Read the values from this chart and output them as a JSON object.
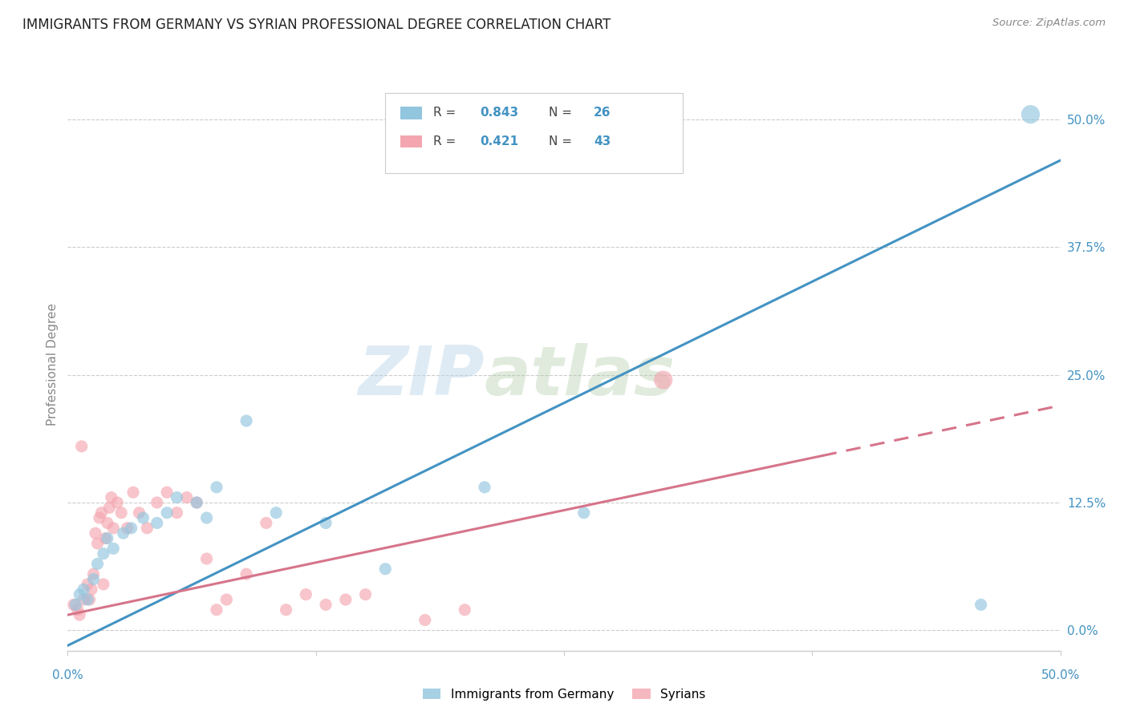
{
  "title": "IMMIGRANTS FROM GERMANY VS SYRIAN PROFESSIONAL DEGREE CORRELATION CHART",
  "source": "Source: ZipAtlas.com",
  "ylabel": "Professional Degree",
  "ytick_labels": [
    "0.0%",
    "12.5%",
    "25.0%",
    "37.5%",
    "50.0%"
  ],
  "ytick_values": [
    0.0,
    12.5,
    25.0,
    37.5,
    50.0
  ],
  "xlim": [
    0.0,
    50.0
  ],
  "ylim": [
    -2.0,
    54.0
  ],
  "blue_color": "#92c5de",
  "pink_color": "#f4a6b0",
  "blue_line_color": "#4393c3",
  "pink_line_color": "#d6748a",
  "legend_blue_r": "0.843",
  "legend_blue_n": "26",
  "legend_pink_r": "0.421",
  "legend_pink_n": "43",
  "legend_text_color": "#4393c3",
  "label_color": "#4393c3",
  "watermark_zip": "ZIP",
  "watermark_atlas": "atlas",
  "blue_line_x0": 0.0,
  "blue_line_y0": -1.5,
  "blue_line_x1": 50.0,
  "blue_line_y1": 46.0,
  "pink_line_x0": 0.0,
  "pink_line_y0": 1.5,
  "pink_line_x1": 50.0,
  "pink_line_y1": 22.0,
  "pink_dash_start_x": 38.0,
  "blue_scatter_x": [
    0.4,
    0.6,
    0.8,
    1.0,
    1.3,
    1.5,
    1.8,
    2.0,
    2.3,
    2.8,
    3.2,
    3.8,
    4.5,
    5.5,
    6.5,
    7.5,
    9.0,
    10.5,
    13.0,
    16.0,
    21.0,
    26.0,
    5.0,
    7.0,
    46.0,
    48.5
  ],
  "blue_scatter_y": [
    2.5,
    3.5,
    4.0,
    3.0,
    5.0,
    6.5,
    7.5,
    9.0,
    8.0,
    9.5,
    10.0,
    11.0,
    10.5,
    13.0,
    12.5,
    14.0,
    20.5,
    11.5,
    10.5,
    6.0,
    14.0,
    11.5,
    11.5,
    11.0,
    2.5,
    50.5
  ],
  "pink_scatter_x": [
    0.3,
    0.5,
    0.6,
    0.8,
    1.0,
    1.1,
    1.2,
    1.3,
    1.4,
    1.5,
    1.6,
    1.7,
    1.8,
    1.9,
    2.0,
    2.1,
    2.2,
    2.3,
    2.5,
    2.7,
    3.0,
    3.3,
    3.6,
    4.0,
    4.5,
    5.0,
    5.5,
    6.0,
    6.5,
    7.0,
    7.5,
    8.0,
    9.0,
    10.0,
    11.0,
    12.0,
    13.0,
    14.0,
    15.0,
    0.7,
    18.0,
    20.0,
    30.0
  ],
  "pink_scatter_y": [
    2.5,
    2.0,
    1.5,
    3.0,
    4.5,
    3.0,
    4.0,
    5.5,
    9.5,
    8.5,
    11.0,
    11.5,
    4.5,
    9.0,
    10.5,
    12.0,
    13.0,
    10.0,
    12.5,
    11.5,
    10.0,
    13.5,
    11.5,
    10.0,
    12.5,
    13.5,
    11.5,
    13.0,
    12.5,
    7.0,
    2.0,
    3.0,
    5.5,
    10.5,
    2.0,
    3.5,
    2.5,
    3.0,
    3.5,
    18.0,
    1.0,
    2.0,
    24.5
  ],
  "blue_scatter_sizes": [
    120,
    120,
    120,
    120,
    120,
    120,
    120,
    120,
    120,
    120,
    120,
    120,
    120,
    120,
    120,
    120,
    120,
    120,
    120,
    120,
    120,
    120,
    120,
    120,
    120,
    280
  ],
  "pink_scatter_sizes": [
    120,
    120,
    120,
    120,
    120,
    120,
    120,
    120,
    120,
    120,
    120,
    120,
    120,
    120,
    120,
    120,
    120,
    120,
    120,
    120,
    120,
    120,
    120,
    120,
    120,
    120,
    120,
    120,
    120,
    120,
    120,
    120,
    120,
    120,
    120,
    120,
    120,
    120,
    120,
    120,
    120,
    120,
    280
  ]
}
